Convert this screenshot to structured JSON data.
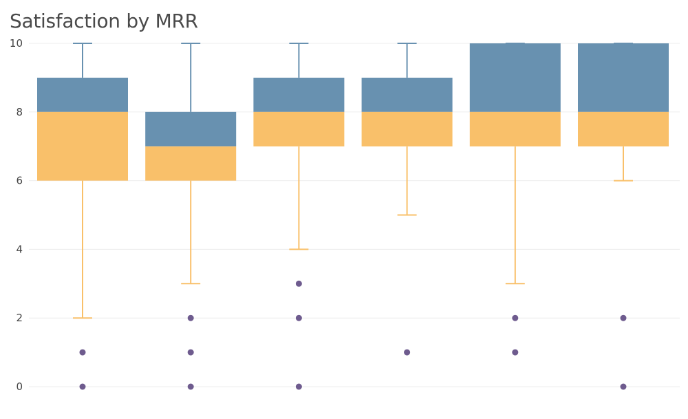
{
  "chart_data": {
    "type": "box",
    "title": "Satisfaction by MRR",
    "xlabel": "",
    "ylabel": "",
    "ylim": [
      0,
      10
    ],
    "y_ticks": [
      0,
      2,
      4,
      6,
      8,
      10
    ],
    "grid": true,
    "legend": "none",
    "colors": {
      "upper_box": "#6891b0",
      "lower_box": "#f9c06a",
      "upper_whisker": "#6891b0",
      "lower_whisker": "#f9c06a",
      "outlier": "#6e5b8e"
    },
    "boxes": [
      {
        "min": 2,
        "q1": 6,
        "median": 8,
        "q3": 9,
        "max": 10,
        "outliers": [
          1,
          0
        ]
      },
      {
        "min": 3,
        "q1": 6,
        "median": 7,
        "q3": 8,
        "max": 10,
        "outliers": [
          2,
          1,
          0
        ]
      },
      {
        "min": 4,
        "q1": 7,
        "median": 8,
        "q3": 9,
        "max": 10,
        "outliers": [
          3,
          2,
          0
        ]
      },
      {
        "min": 5,
        "q1": 7,
        "median": 8,
        "q3": 9,
        "max": 10,
        "outliers": [
          1
        ]
      },
      {
        "min": 3,
        "q1": 7,
        "median": 8,
        "q3": 10,
        "max": 10,
        "outliers": [
          2,
          1
        ]
      },
      {
        "min": 6,
        "q1": 7,
        "median": 8,
        "q3": 10,
        "max": 10,
        "outliers": [
          2,
          0
        ]
      }
    ]
  }
}
